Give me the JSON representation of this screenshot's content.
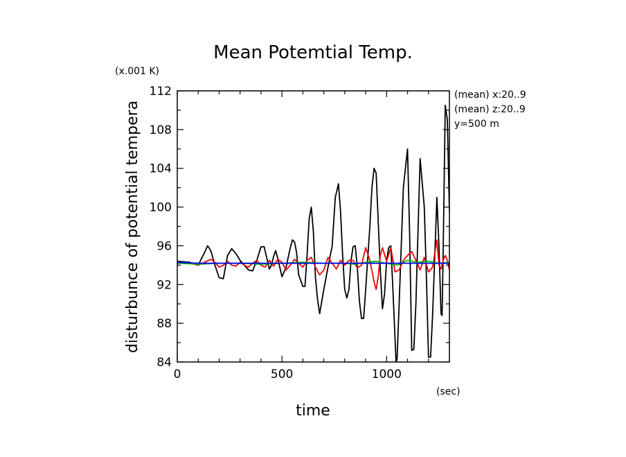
{
  "chart_data": {
    "type": "line",
    "title": "Mean Potemtial Temp.",
    "xlabel": "time",
    "ylabel": "disturbunce of potential tempera",
    "x_unit": "(sec)",
    "y_unit": "(x.001 K)",
    "annotations": [
      "(mean) x:20..9",
      "(mean) z:20..9",
      "y=500 m"
    ],
    "xlim": [
      0,
      1300
    ],
    "ylim": [
      84,
      112
    ],
    "x_ticks": [
      0,
      500,
      1000
    ],
    "y_ticks": [
      84,
      88,
      92,
      96,
      100,
      104,
      108,
      112
    ],
    "grid": false,
    "series": [
      {
        "color": "#000000",
        "x": [
          0,
          60,
          100,
          130,
          145,
          160,
          180,
          200,
          220,
          240,
          260,
          280,
          300,
          320,
          340,
          360,
          380,
          400,
          415,
          430,
          440,
          450,
          460,
          470,
          480,
          500,
          520,
          540,
          550,
          560,
          570,
          580,
          600,
          610,
          620,
          630,
          640,
          650,
          660,
          670,
          680,
          700,
          720,
          740,
          755,
          770,
          780,
          790,
          800,
          810,
          820,
          830,
          840,
          850,
          860,
          870,
          880,
          890,
          900,
          920,
          930,
          940,
          950,
          960,
          970,
          980,
          990,
          1000,
          1010,
          1020,
          1030,
          1045,
          1050,
          1060,
          1080,
          1100,
          1110,
          1120,
          1130,
          1140,
          1160,
          1180,
          1190,
          1200,
          1210,
          1220,
          1240,
          1250,
          1260,
          1265,
          1270,
          1280,
          1290,
          1300
        ],
        "values": [
          94.4,
          94.3,
          94.0,
          95.3,
          96.0,
          95.5,
          94.0,
          92.7,
          92.6,
          95.0,
          95.7,
          95.2,
          94.5,
          94.0,
          93.5,
          93.4,
          94.5,
          95.9,
          95.9,
          94.5,
          93.6,
          94.0,
          94.9,
          95.5,
          94.7,
          92.8,
          93.8,
          95.8,
          96.6,
          96.4,
          95.3,
          93.0,
          91.8,
          91.8,
          95.0,
          98.8,
          100.0,
          97.5,
          92.8,
          90.5,
          89.0,
          91.5,
          93.8,
          96.0,
          101.0,
          102.4,
          99.5,
          95.0,
          91.5,
          90.6,
          91.5,
          94.5,
          95.9,
          96.0,
          93.8,
          90.3,
          88.5,
          88.5,
          91.5,
          98.0,
          102.0,
          104.0,
          103.5,
          98.5,
          93.5,
          89.5,
          91.0,
          94.5,
          95.8,
          96.0,
          91.5,
          84.0,
          84.3,
          90.0,
          102.0,
          106.0,
          97.0,
          85.2,
          85.3,
          90.0,
          105.0,
          100.0,
          93.0,
          84.5,
          84.5,
          89.0,
          101.0,
          96.0,
          89.0,
          88.8,
          95.0,
          110.5,
          109.0,
          99.5
        ]
      },
      {
        "color": "#ee0000",
        "x": [
          0,
          60,
          100,
          130,
          160,
          180,
          200,
          220,
          240,
          260,
          280,
          300,
          320,
          340,
          360,
          380,
          400,
          420,
          440,
          460,
          480,
          500,
          520,
          540,
          560,
          580,
          600,
          620,
          640,
          660,
          680,
          700,
          720,
          740,
          760,
          780,
          800,
          820,
          840,
          860,
          880,
          900,
          920,
          940,
          950,
          960,
          970,
          980,
          1000,
          1020,
          1040,
          1060,
          1080,
          1100,
          1120,
          1140,
          1160,
          1180,
          1200,
          1220,
          1240,
          1250,
          1260,
          1270,
          1280,
          1290,
          1300
        ],
        "values": [
          94.2,
          94.2,
          94.0,
          94.3,
          94.6,
          94.3,
          93.8,
          94.0,
          94.4,
          94.0,
          93.9,
          94.3,
          94.0,
          93.8,
          94.2,
          94.5,
          94.0,
          93.8,
          94.5,
          93.9,
          94.6,
          94.3,
          93.5,
          94.0,
          94.6,
          94.2,
          93.8,
          94.5,
          94.8,
          93.8,
          93.0,
          93.5,
          94.8,
          94.2,
          93.6,
          94.5,
          94.0,
          94.5,
          94.5,
          93.7,
          94.0,
          95.8,
          94.5,
          92.3,
          91.5,
          92.8,
          95.0,
          95.8,
          94.4,
          95.8,
          93.3,
          93.5,
          94.5,
          95.0,
          95.4,
          94.5,
          93.5,
          94.8,
          93.3,
          93.8,
          96.6,
          94.0,
          93.6,
          94.5,
          95.0,
          94.5,
          93.5
        ]
      },
      {
        "color": "#00bb00",
        "x": [
          0,
          100,
          200,
          300,
          400,
          500,
          600,
          700,
          800,
          850,
          900,
          950,
          1000,
          1050,
          1100,
          1150,
          1200,
          1250,
          1300
        ],
        "values": [
          94.2,
          94.1,
          94.2,
          94.2,
          94.1,
          94.2,
          94.3,
          94.2,
          94.2,
          94.1,
          94.3,
          94.4,
          94.2,
          94.0,
          94.5,
          94.3,
          94.4,
          94.2,
          94.3
        ]
      },
      {
        "color": "#00cccc",
        "x": [
          0,
          100,
          200,
          300,
          400,
          500,
          600,
          700,
          800,
          900,
          1000,
          1100,
          1200,
          1300
        ],
        "values": [
          94.3,
          94.2,
          94.2,
          94.2,
          94.2,
          94.2,
          94.2,
          94.2,
          94.2,
          94.2,
          94.2,
          94.2,
          94.2,
          94.2
        ]
      },
      {
        "color": "#0000ee",
        "x": [
          0,
          100,
          200,
          300,
          400,
          500,
          600,
          700,
          800,
          900,
          1000,
          1100,
          1200,
          1300
        ],
        "values": [
          94.3,
          94.2,
          94.2,
          94.2,
          94.2,
          94.2,
          94.2,
          94.2,
          94.2,
          94.2,
          94.2,
          94.2,
          94.2,
          94.2
        ]
      }
    ]
  }
}
